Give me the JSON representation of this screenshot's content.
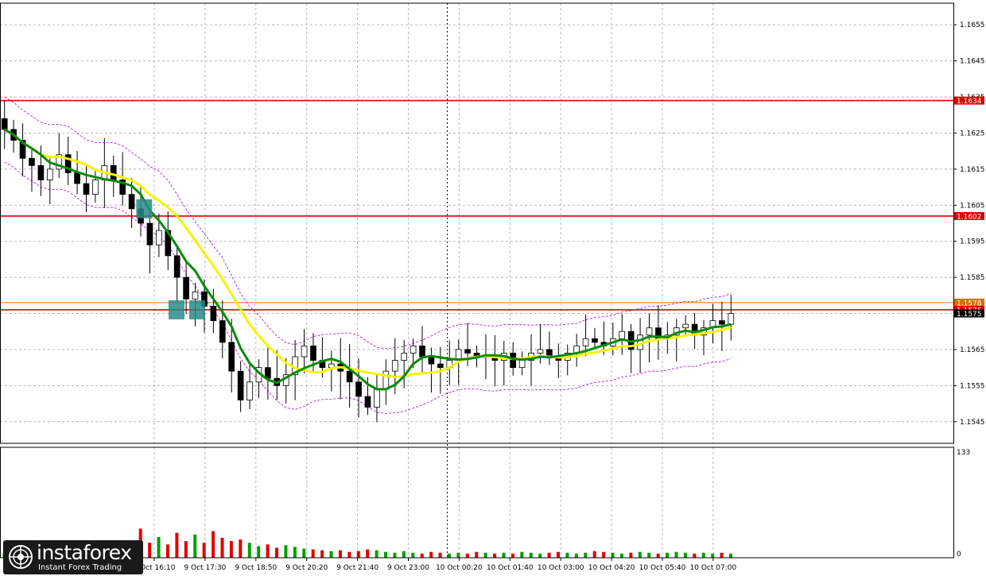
{
  "brand": {
    "name": "instaforex",
    "tagline": "Instant Forex Trading",
    "icon": "instaforex-logo-icon"
  },
  "colors": {
    "background": "#ffffff",
    "bull_candle": "#000000",
    "bear_candle": "#000000",
    "ma_fast": "#0a8a0a",
    "ma_slow": "#f5f500",
    "envelope": "#b000d0",
    "level_line": "#e00000",
    "level_line_light": "#e06a00",
    "volume_up": "#00a000",
    "volume_down": "#e00000",
    "grid": "#b8b8b8",
    "signal_box": "#2a8a8a"
  },
  "chart_data": {
    "type": "candlestick",
    "title": "",
    "xlabel": "",
    "ylabel": "",
    "ylim": [
      1.1539,
      1.1661
    ],
    "grid": true,
    "y_ticks": [
      "1.1655",
      "1.1645",
      "1.1635",
      "1.1625",
      "1.1615",
      "1.1605",
      "1.1595",
      "1.1585",
      "1.1575",
      "1.1565",
      "1.1555",
      "1.1545"
    ],
    "x_ticks": [
      "9 Oct 16:10",
      "9 Oct 17:30",
      "9 Oct 18:50",
      "9 Oct 20:20",
      "9 Oct 21:40",
      "9 Oct 23:00",
      "10 Oct 00:20",
      "10 Oct 01:40",
      "10 Oct 03:00",
      "10 Oct 04:20",
      "10 Oct 05:40",
      "10 Oct 07:00"
    ],
    "levels": [
      {
        "label": "1.1634",
        "value": 1.1634,
        "style": "red"
      },
      {
        "label": "1.1602",
        "value": 1.1602,
        "style": "red"
      },
      {
        "label": "1.1578",
        "value": 1.1578,
        "style": "orange"
      },
      {
        "label": "1.1576",
        "value": 1.1576,
        "style": "red"
      },
      {
        "label": "1.1575",
        "value": 1.1575,
        "style": "current"
      }
    ],
    "day_separator": "9 Oct 23:00",
    "close_path": [
      1.1626,
      1.1623,
      1.1618,
      1.1616,
      1.1612,
      1.1615,
      1.1619,
      1.1614,
      1.1611,
      1.1608,
      1.1612,
      1.1616,
      1.1612,
      1.1608,
      1.1604,
      1.16,
      1.1594,
      1.1598,
      1.1591,
      1.1585,
      1.1579,
      1.1581,
      1.1577,
      1.1573,
      1.1567,
      1.1559,
      1.1551,
      1.1556,
      1.156,
      1.1557,
      1.1555,
      1.1558,
      1.1563,
      1.1566,
      1.1562,
      1.156,
      1.1561,
      1.1559,
      1.1556,
      1.1552,
      1.1549,
      1.1554,
      1.1559,
      1.1562,
      1.1564,
      1.1566,
      1.1563,
      1.1561,
      1.156,
      1.1562,
      1.1565,
      1.1564,
      1.1563,
      1.1563,
      1.1562,
      1.1564,
      1.156,
      1.1562,
      1.1564,
      1.1565,
      1.1563,
      1.1562,
      1.1564,
      1.1566,
      1.1568,
      1.1567,
      1.1566,
      1.1568,
      1.157,
      1.1565,
      1.1569,
      1.1571,
      1.1568,
      1.1569,
      1.1571,
      1.1572,
      1.1569,
      1.1571,
      1.1573,
      1.1572,
      1.1575
    ],
    "volume_path": [
      5,
      7,
      6,
      8,
      10,
      9,
      12,
      10,
      8,
      11,
      9,
      12,
      10,
      14,
      12,
      35,
      18,
      25,
      16,
      30,
      20,
      28,
      18,
      32,
      24,
      20,
      22,
      18,
      14,
      16,
      12,
      15,
      13,
      11,
      10,
      9,
      8,
      9,
      7,
      8,
      10,
      9,
      7,
      6,
      8,
      6,
      5,
      7,
      6,
      5,
      6,
      5,
      7,
      6,
      5,
      6,
      5,
      7,
      6,
      5,
      6,
      7,
      6,
      5,
      6,
      8,
      7,
      6,
      5,
      6,
      7,
      6,
      5,
      6,
      7,
      6,
      5,
      6,
      5,
      6,
      5
    ],
    "volume_max_label": "133",
    "volume_zero_label": "0",
    "signals": [
      {
        "name": "sell-signal",
        "at": 0.196,
        "value": 1.1604
      },
      {
        "name": "sell-signal",
        "at": 0.24,
        "value": 1.1576
      },
      {
        "name": "sell-signal",
        "at": 0.268,
        "value": 1.1576
      }
    ]
  }
}
